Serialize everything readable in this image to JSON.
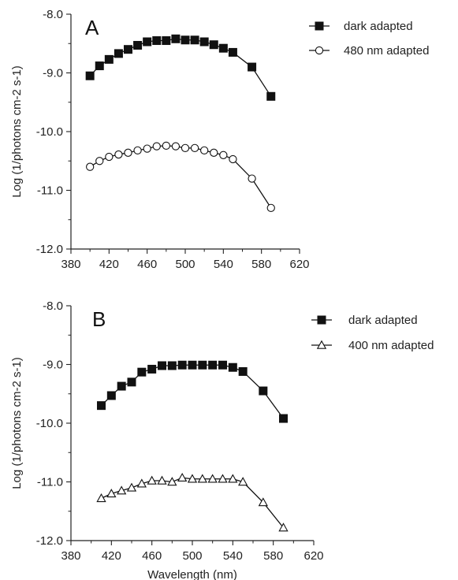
{
  "chart_data": [
    {
      "type": "line",
      "panel_label": "A",
      "xlabel": "",
      "ylabel": "Log (1/photons cm-2 s-1)",
      "xlim": [
        380,
        620
      ],
      "ylim": [
        -12.0,
        -8.0
      ],
      "xticks": [
        "380",
        "420",
        "460",
        "500",
        "540",
        "580",
        "620"
      ],
      "yticks": [
        "-8.0",
        "-9.0",
        "-10.0",
        "-11.0",
        "-12.0"
      ],
      "legend_position": "top-right",
      "series": [
        {
          "name": "dark adapted",
          "marker": "filled-square",
          "x": [
            400,
            410,
            420,
            430,
            440,
            450,
            460,
            470,
            480,
            490,
            500,
            510,
            520,
            530,
            540,
            550,
            570,
            590
          ],
          "y": [
            -9.05,
            -8.88,
            -8.77,
            -8.67,
            -8.6,
            -8.53,
            -8.47,
            -8.45,
            -8.45,
            -8.42,
            -8.44,
            -8.44,
            -8.47,
            -8.52,
            -8.58,
            -8.65,
            -8.9,
            -9.4
          ]
        },
        {
          "name": "480 nm adapted",
          "marker": "open-circle",
          "x": [
            400,
            410,
            420,
            430,
            440,
            450,
            460,
            470,
            480,
            490,
            500,
            510,
            520,
            530,
            540,
            550,
            570,
            590
          ],
          "y": [
            -10.6,
            -10.5,
            -10.43,
            -10.39,
            -10.36,
            -10.32,
            -10.29,
            -10.25,
            -10.24,
            -10.25,
            -10.28,
            -10.28,
            -10.32,
            -10.36,
            -10.4,
            -10.47,
            -10.8,
            -11.3
          ]
        }
      ]
    },
    {
      "type": "line",
      "panel_label": "B",
      "xlabel": "Wavelength (nm)",
      "ylabel": "Log (1/photons cm-2 s-1)",
      "xlim": [
        380,
        620
      ],
      "ylim": [
        -12.0,
        -8.0
      ],
      "xticks": [
        "380",
        "420",
        "460",
        "500",
        "540",
        "580",
        "620"
      ],
      "yticks": [
        "-8.0",
        "-9.0",
        "-10.0",
        "-11.0",
        "-12.0"
      ],
      "legend_position": "top-right",
      "series": [
        {
          "name": "dark adapted",
          "marker": "filled-square",
          "x": [
            410,
            420,
            430,
            440,
            450,
            460,
            470,
            480,
            490,
            500,
            510,
            520,
            530,
            540,
            550,
            570,
            590
          ],
          "y": [
            -9.7,
            -9.53,
            -9.37,
            -9.3,
            -9.13,
            -9.08,
            -9.02,
            -9.02,
            -9.01,
            -9.01,
            -9.01,
            -9.01,
            -9.01,
            -9.05,
            -9.12,
            -9.45,
            -9.92
          ]
        },
        {
          "name": "400 nm adapted",
          "marker": "open-triangle",
          "x": [
            410,
            420,
            430,
            440,
            450,
            460,
            470,
            480,
            490,
            500,
            510,
            520,
            530,
            540,
            550,
            570,
            590
          ],
          "y": [
            -11.28,
            -11.2,
            -11.15,
            -11.1,
            -11.03,
            -10.98,
            -10.98,
            -11.0,
            -10.93,
            -10.95,
            -10.95,
            -10.95,
            -10.95,
            -10.95,
            -11.0,
            -11.35,
            -11.78
          ]
        }
      ]
    }
  ]
}
